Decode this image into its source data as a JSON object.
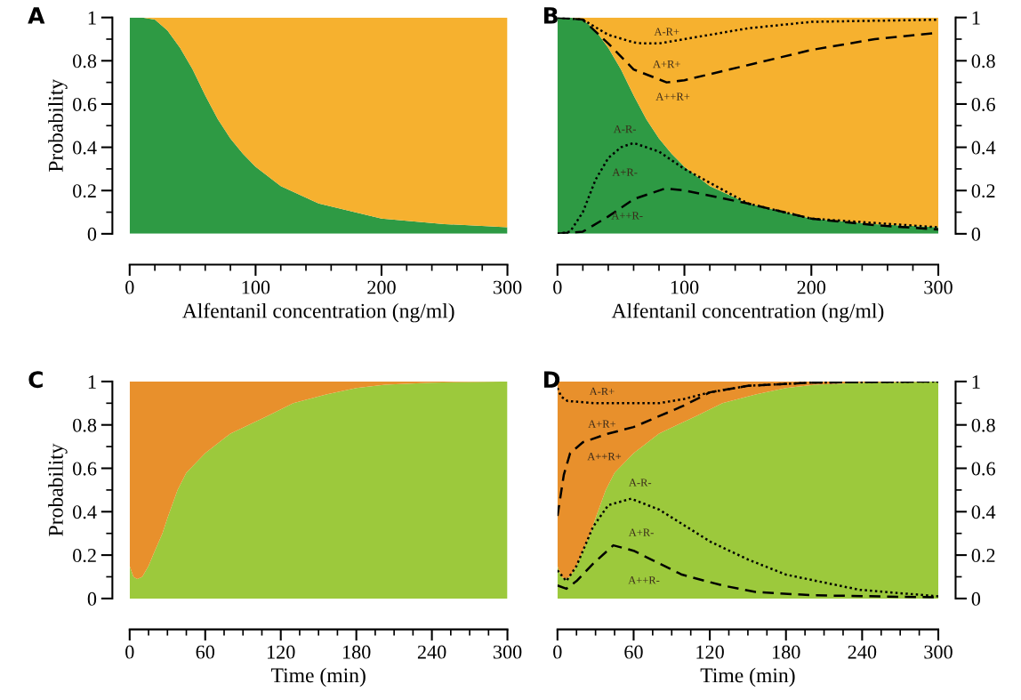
{
  "chart_data": [
    {
      "type": "area",
      "title": "A",
      "xlabel": "Alfentanil concentration (ng/ml)",
      "ylabel": "Probability",
      "stacked": true,
      "xlim": [
        0,
        300
      ],
      "xticks": [
        0,
        100,
        200,
        300
      ],
      "ylim": [
        0,
        1
      ],
      "yticks": [
        0,
        0.2,
        0.4,
        0.6,
        0.8,
        1
      ],
      "series": [
        {
          "color": "#2e9a44",
          "x": [
            0,
            10,
            20,
            30,
            40,
            50,
            60,
            70,
            80,
            90,
            100,
            120,
            150,
            200,
            250,
            300
          ],
          "values": [
            1,
            1,
            0.99,
            0.94,
            0.86,
            0.76,
            0.64,
            0.53,
            0.44,
            0.37,
            0.31,
            0.22,
            0.14,
            0.07,
            0.045,
            0.03
          ]
        },
        {
          "color": "#f6b12f",
          "x": [
            0,
            10,
            20,
            30,
            40,
            50,
            60,
            70,
            80,
            90,
            100,
            120,
            150,
            200,
            250,
            300
          ],
          "values": [
            0,
            0,
            0.01,
            0.06,
            0.14,
            0.24,
            0.36,
            0.47,
            0.56,
            0.63,
            0.69,
            0.78,
            0.86,
            0.93,
            0.955,
            0.97
          ]
        }
      ]
    },
    {
      "type": "area",
      "title": "B",
      "xlabel": "Alfentanil concentration (ng/ml)",
      "stacked": true,
      "xlim": [
        0,
        300
      ],
      "xticks": [
        0,
        100,
        200,
        300
      ],
      "ylim": [
        0,
        1
      ],
      "yticks": [
        0,
        0.2,
        0.4,
        0.6,
        0.8,
        1
      ],
      "series": [
        {
          "color": "#2e9a44",
          "x": [
            0,
            10,
            20,
            30,
            40,
            50,
            60,
            70,
            80,
            90,
            100,
            120,
            150,
            200,
            250,
            300
          ],
          "values": [
            1,
            1,
            0.99,
            0.94,
            0.86,
            0.76,
            0.64,
            0.53,
            0.44,
            0.37,
            0.31,
            0.22,
            0.14,
            0.07,
            0.045,
            0.03
          ]
        },
        {
          "color": "#f6b12f",
          "x": [
            0,
            10,
            20,
            30,
            40,
            50,
            60,
            70,
            80,
            90,
            100,
            120,
            150,
            200,
            250,
            300
          ],
          "values": [
            0,
            0,
            0.01,
            0.06,
            0.14,
            0.24,
            0.36,
            0.47,
            0.56,
            0.63,
            0.69,
            0.78,
            0.86,
            0.93,
            0.955,
            0.97
          ]
        },
        {
          "type": "line",
          "line_style": "dotted",
          "color": "#000000",
          "x": [
            0,
            20,
            40,
            60,
            67,
            80,
            100,
            150,
            200,
            300
          ],
          "values": [
            1,
            0.99,
            0.92,
            0.885,
            0.88,
            0.88,
            0.9,
            0.95,
            0.98,
            0.99
          ]
        },
        {
          "type": "line",
          "line_style": "dashed",
          "color": "#000000",
          "x": [
            0,
            20,
            40,
            60,
            86,
            100,
            150,
            200,
            250,
            300
          ],
          "values": [
            1,
            0.99,
            0.88,
            0.76,
            0.7,
            0.71,
            0.78,
            0.85,
            0.9,
            0.93
          ]
        },
        {
          "type": "line",
          "line_style": "dotted",
          "color": "#000000",
          "x": [
            0,
            10,
            20,
            30,
            40,
            50,
            60,
            80,
            100,
            150,
            200,
            300
          ],
          "values": [
            0,
            0.01,
            0.1,
            0.25,
            0.35,
            0.4,
            0.42,
            0.38,
            0.3,
            0.14,
            0.07,
            0.03
          ]
        },
        {
          "type": "line",
          "line_style": "dashed",
          "color": "#000000",
          "x": [
            0,
            20,
            40,
            60,
            85,
            100,
            150,
            200,
            250,
            300
          ],
          "values": [
            0,
            0.01,
            0.08,
            0.16,
            0.21,
            0.2,
            0.14,
            0.07,
            0.04,
            0.02
          ]
        }
      ],
      "annotations": [
        "A-R+",
        "A+R+",
        "A++R+",
        "A-R-",
        "A+R-",
        "A++R-"
      ]
    },
    {
      "type": "area",
      "title": "C",
      "xlabel": "Time (min)",
      "ylabel": "Probability",
      "stacked": true,
      "xlim": [
        0,
        300
      ],
      "xticks": [
        0,
        60,
        120,
        180,
        240,
        300
      ],
      "ylim": [
        0,
        1
      ],
      "yticks": [
        0,
        0.2,
        0.4,
        0.6,
        0.8,
        1
      ],
      "series": [
        {
          "color": "#9cc93c",
          "x": [
            0,
            3,
            6,
            10,
            15,
            20,
            26,
            30,
            38,
            45,
            60,
            80,
            109,
            130,
            156,
            180,
            203,
            240,
            300
          ],
          "values": [
            0.15,
            0.1,
            0.09,
            0.1,
            0.15,
            0.22,
            0.3,
            0.37,
            0.5,
            0.58,
            0.67,
            0.76,
            0.84,
            0.9,
            0.94,
            0.97,
            0.985,
            0.995,
            1
          ]
        },
        {
          "color": "#e8902c",
          "x": [
            0,
            3,
            6,
            10,
            15,
            20,
            26,
            30,
            38,
            45,
            60,
            80,
            109,
            130,
            156,
            180,
            203,
            240,
            300
          ],
          "values": [
            0.85,
            0.9,
            0.91,
            0.9,
            0.85,
            0.78,
            0.7,
            0.63,
            0.5,
            0.42,
            0.33,
            0.24,
            0.16,
            0.1,
            0.06,
            0.03,
            0.015,
            0.005,
            0
          ]
        }
      ]
    },
    {
      "type": "area",
      "title": "D",
      "xlabel": "Time (min)",
      "stacked": true,
      "xlim": [
        0,
        300
      ],
      "xticks": [
        0,
        60,
        120,
        180,
        240,
        300
      ],
      "ylim": [
        0,
        1
      ],
      "yticks": [
        0,
        0.2,
        0.4,
        0.6,
        0.8,
        1
      ],
      "series": [
        {
          "color": "#9cc93c",
          "x": [
            0,
            3,
            6,
            10,
            15,
            20,
            26,
            30,
            38,
            45,
            60,
            80,
            109,
            130,
            156,
            180,
            203,
            240,
            300
          ],
          "values": [
            0.15,
            0.1,
            0.09,
            0.1,
            0.15,
            0.22,
            0.3,
            0.37,
            0.5,
            0.58,
            0.67,
            0.76,
            0.84,
            0.9,
            0.94,
            0.97,
            0.985,
            0.995,
            1
          ]
        },
        {
          "color": "#e8902c",
          "x": [
            0,
            3,
            6,
            10,
            15,
            20,
            26,
            30,
            38,
            45,
            60,
            80,
            109,
            130,
            156,
            180,
            203,
            240,
            300
          ],
          "values": [
            0.85,
            0.9,
            0.91,
            0.9,
            0.85,
            0.78,
            0.7,
            0.63,
            0.5,
            0.42,
            0.33,
            0.24,
            0.16,
            0.1,
            0.06,
            0.03,
            0.015,
            0.005,
            0
          ]
        },
        {
          "type": "line",
          "line_style": "dotted",
          "color": "#000000",
          "x": [
            0,
            3,
            8,
            30,
            60,
            80,
            100,
            120,
            150,
            200,
            300
          ],
          "values": [
            0.97,
            0.93,
            0.91,
            0.9,
            0.9,
            0.9,
            0.92,
            0.95,
            0.98,
            0.995,
            1
          ]
        },
        {
          "type": "line",
          "line_style": "dashed",
          "color": "#000000",
          "x": [
            0,
            5,
            10,
            20,
            40,
            60,
            80,
            100,
            120,
            150,
            200,
            300
          ],
          "values": [
            0.38,
            0.57,
            0.67,
            0.72,
            0.76,
            0.79,
            0.84,
            0.89,
            0.95,
            0.98,
            0.995,
            1
          ]
        },
        {
          "type": "line",
          "line_style": "dotted",
          "color": "#000000",
          "x": [
            0,
            7,
            15,
            28,
            40,
            58,
            80,
            121,
            150,
            180,
            238,
            300
          ],
          "values": [
            0.13,
            0.08,
            0.15,
            0.33,
            0.43,
            0.46,
            0.41,
            0.26,
            0.18,
            0.11,
            0.04,
            0.01
          ]
        },
        {
          "type": "line",
          "line_style": "dashed",
          "color": "#000000",
          "x": [
            0,
            7,
            15,
            28,
            44,
            60,
            98,
            130,
            156,
            200,
            300
          ],
          "values": [
            0.06,
            0.045,
            0.08,
            0.16,
            0.245,
            0.22,
            0.11,
            0.06,
            0.03,
            0.015,
            0.005
          ]
        }
      ],
      "annotations": [
        "A-R+",
        "A+R+",
        "A++R+",
        "A-R-",
        "A+R-",
        "A++R-"
      ]
    }
  ]
}
